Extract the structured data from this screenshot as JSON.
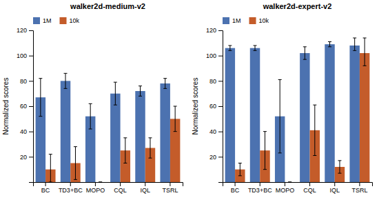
{
  "chart_data": [
    {
      "type": "bar",
      "title": "walker2d-medium-v2",
      "categories": [
        "BC",
        "TD3+BC",
        "MOPO",
        "CQL",
        "IQL",
        "TSRL"
      ],
      "series": [
        {
          "name": "1M",
          "color": "#4C72B0",
          "values": [
            67,
            80,
            52,
            70,
            72,
            78
          ],
          "error_low": [
            15,
            6,
            10,
            9,
            4,
            4
          ],
          "error_high": [
            15,
            6,
            10,
            9,
            4,
            4
          ]
        },
        {
          "name": "10k",
          "color": "#C45C2A",
          "values": [
            10,
            15,
            0,
            25,
            27,
            50
          ],
          "error_low": [
            10,
            13,
            0,
            10,
            8,
            10
          ],
          "error_high": [
            12,
            13,
            0,
            10,
            8,
            10
          ]
        }
      ],
      "y_label": "Normalized scores",
      "ylim": [
        0,
        120
      ],
      "yticks": [
        20,
        40,
        60,
        80,
        100,
        120
      ],
      "grid": false,
      "legend": "upper left"
    },
    {
      "type": "bar",
      "title": "walker2d-expert-v2",
      "categories": [
        "BC",
        "TD3+BC",
        "MOPO",
        "CQL",
        "IQL",
        "TSRL"
      ],
      "series": [
        {
          "name": "1M",
          "color": "#4C72B0",
          "values": [
            106,
            106,
            52,
            102,
            109,
            108
          ],
          "error_low": [
            2,
            2,
            29,
            5,
            2,
            4
          ],
          "error_high": [
            2,
            2,
            29,
            5,
            2,
            6
          ]
        },
        {
          "name": "10k",
          "color": "#C45C2A",
          "values": [
            10,
            25,
            0,
            41,
            12,
            102
          ],
          "error_low": [
            5,
            15,
            0,
            20,
            5,
            10
          ],
          "error_high": [
            5,
            15,
            0,
            20,
            5,
            12
          ]
        }
      ],
      "y_label": "Normalized scores",
      "ylim": [
        0,
        120
      ],
      "yticks": [
        20,
        40,
        60,
        80,
        100,
        120
      ],
      "grid": false,
      "legend": "upper left"
    }
  ]
}
